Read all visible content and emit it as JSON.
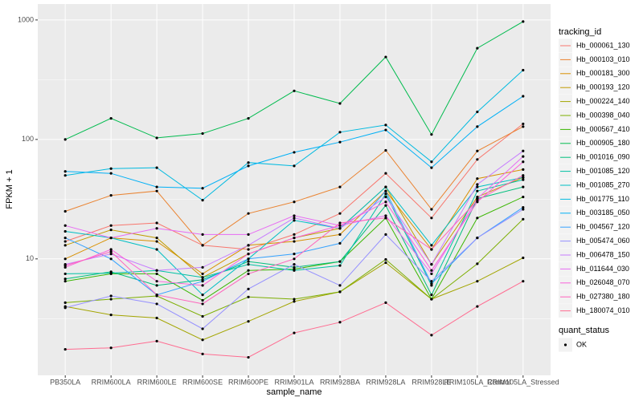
{
  "chart_data": {
    "type": "line",
    "x_label": "sample_name",
    "y_label": "FPKM + 1",
    "categories": [
      "PB350LA",
      "RRIM600LA",
      "RRIM600LE",
      "RRIM600SE",
      "RRIM600PE",
      "RRIM901LA",
      "RRIM928BA",
      "RRIM928LA",
      "RRIM928LE",
      "RRIM105LA_Control",
      "RRIM105LA_Stressed"
    ],
    "log_y": true,
    "grid": true,
    "ylim": [
      1.06,
      1360
    ],
    "yticks": [
      10,
      100,
      1000
    ],
    "legend_position": "right",
    "legend_title": "tracking_id",
    "point_legend": {
      "title": "quant_status",
      "labels": [
        "OK"
      ],
      "color": "#000000"
    },
    "series": [
      {
        "name": "Hb_000061_130",
        "color": "#F8766D",
        "values": [
          14,
          19,
          20,
          13,
          12,
          16,
          24,
          52,
          22,
          68,
          135
        ]
      },
      {
        "name": "Hb_000103_010",
        "color": "#EA8331",
        "values": [
          25,
          34,
          37,
          13,
          24,
          30,
          40,
          81,
          26,
          80,
          128
        ]
      },
      {
        "name": "Hb_000181_300",
        "color": "#D89000",
        "values": [
          10,
          15,
          14,
          7.5,
          13,
          14,
          16,
          37,
          12,
          47,
          56
        ]
      },
      {
        "name": "Hb_000193_120",
        "color": "#C09B00",
        "values": [
          13,
          17.5,
          15,
          7,
          11,
          15,
          18,
          40,
          9,
          33,
          48
        ]
      },
      {
        "name": "Hb_000224_140",
        "color": "#A3A500",
        "values": [
          4,
          3.4,
          3.2,
          2.1,
          3,
          4.4,
          5.3,
          9.3,
          4.6,
          6.5,
          10.2
        ]
      },
      {
        "name": "Hb_000398_040",
        "color": "#7CAE00",
        "values": [
          4.3,
          4.6,
          4.9,
          3.3,
          4.8,
          4.6,
          5.3,
          9.9,
          4.6,
          9.1,
          21.5
        ]
      },
      {
        "name": "Hb_000567_410",
        "color": "#39B600",
        "values": [
          6.5,
          7.5,
          7.5,
          4.5,
          8,
          8.2,
          9.5,
          22,
          4.6,
          22,
          33
        ]
      },
      {
        "name": "Hb_000905_180",
        "color": "#00BB4E",
        "values": [
          100,
          150,
          103,
          112,
          150,
          255,
          200,
          490,
          110,
          580,
          970
        ]
      },
      {
        "name": "Hb_001016_090",
        "color": "#00BF7D",
        "values": [
          6.8,
          7.8,
          6,
          6.7,
          9.5,
          8.5,
          9.5,
          28,
          5,
          32,
          40
        ]
      },
      {
        "name": "Hb_001085_120",
        "color": "#00C1A3",
        "values": [
          7.5,
          7.6,
          8,
          7,
          9,
          8,
          8.8,
          35,
          6,
          37,
          46
        ]
      },
      {
        "name": "Hb_001085_270",
        "color": "#00BFC4",
        "values": [
          17,
          15,
          12,
          5,
          10,
          21,
          18,
          40,
          13,
          40,
          48
        ]
      },
      {
        "name": "Hb_001775_110",
        "color": "#00BAE0",
        "values": [
          50,
          57,
          58,
          31,
          64,
          60,
          115,
          132,
          65,
          170,
          380
        ]
      },
      {
        "name": "Hb_003185_050",
        "color": "#00B0F6",
        "values": [
          54,
          52,
          40,
          39,
          60,
          78,
          95,
          120,
          58,
          128,
          230
        ]
      },
      {
        "name": "Hb_004567_120",
        "color": "#35A2FF",
        "values": [
          15,
          10,
          5,
          6.5,
          10,
          11,
          13.5,
          37,
          6.2,
          15,
          27
        ]
      },
      {
        "name": "Hb_005474_060",
        "color": "#9590FF",
        "values": [
          3.9,
          4.9,
          4.2,
          2.6,
          5.6,
          9,
          6,
          16,
          6.5,
          15,
          26
        ]
      },
      {
        "name": "Hb_006478_150",
        "color": "#C77CFF",
        "values": [
          9,
          11,
          8,
          8.5,
          13,
          22,
          18,
          33,
          9,
          42,
          80
        ]
      },
      {
        "name": "Hb_011644_030",
        "color": "#E76BF3",
        "values": [
          19,
          15,
          18,
          16,
          16,
          23,
          19,
          23,
          7.5,
          32,
          72
        ]
      },
      {
        "name": "Hb_026048_070",
        "color": "#FA62DB",
        "values": [
          8.5,
          12,
          6.5,
          6,
          11,
          15,
          19,
          30,
          8,
          30,
          65
        ]
      },
      {
        "name": "Hb_027380_180",
        "color": "#FF62BC",
        "values": [
          8.8,
          11.5,
          5,
          4.2,
          7.5,
          10,
          20,
          22,
          12,
          31,
          50
        ]
      },
      {
        "name": "Hb_180074_010",
        "color": "#FF6C91",
        "values": [
          1.75,
          1.8,
          2.05,
          1.6,
          1.5,
          2.4,
          2.95,
          4.3,
          2.3,
          4,
          6.5
        ]
      }
    ]
  }
}
